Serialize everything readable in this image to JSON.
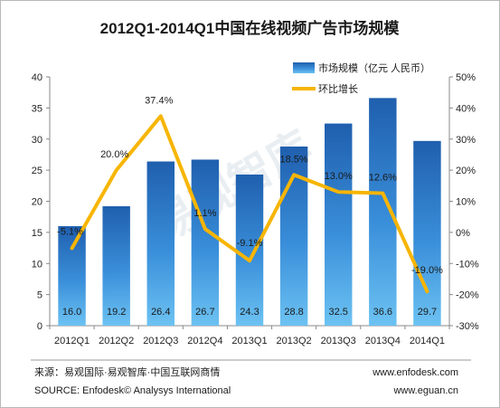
{
  "chart_data": {
    "type": "bar",
    "title": "2012Q1-2014Q1中国在线视频广告市场规模",
    "categories": [
      "2012Q1",
      "2012Q2",
      "2012Q3",
      "2012Q4",
      "2013Q1",
      "2013Q2",
      "2013Q3",
      "2013Q4",
      "2014Q1"
    ],
    "series": [
      {
        "name": "市场规模（亿元 人民币）",
        "type": "bar",
        "axis": "left",
        "values": [
          16.0,
          19.2,
          26.4,
          26.7,
          24.3,
          28.8,
          32.5,
          36.6,
          29.7
        ],
        "labels": [
          "16.0",
          "19.2",
          "26.4",
          "26.7",
          "24.3",
          "28.8",
          "32.5",
          "36.6",
          "29.7"
        ],
        "color": "#2a78c8"
      },
      {
        "name": "环比增长",
        "type": "line",
        "axis": "right",
        "values": [
          -5.1,
          20.0,
          37.4,
          1.1,
          -9.1,
          18.5,
          13.0,
          12.6,
          -19.0
        ],
        "labels": [
          "-5.1%",
          "20.0%",
          "37.4%",
          "1.1%",
          "-9.1%",
          "18.5%",
          "13.0%",
          "12.6%",
          "-19.0%"
        ],
        "color": "#f7b500"
      }
    ],
    "y_left": {
      "range": [
        0,
        40
      ],
      "ticks": [
        "0",
        "5",
        "10",
        "15",
        "20",
        "25",
        "30",
        "35",
        "40"
      ]
    },
    "y_right": {
      "range": [
        -30,
        50
      ],
      "ticks": [
        "-30%",
        "-20%",
        "-10%",
        "0%",
        "10%",
        "20%",
        "30%",
        "40%",
        "50%"
      ]
    },
    "grid": false,
    "legend_position": "top-right"
  },
  "watermark": "易观智库",
  "footer": {
    "source_cn": "来源：易观国际·易观智库·中国互联网商情",
    "source_en": "SOURCE: Enfodesk© Analysys International",
    "site1": "www.enfodesk.com",
    "site2": "www.eguan.cn"
  }
}
